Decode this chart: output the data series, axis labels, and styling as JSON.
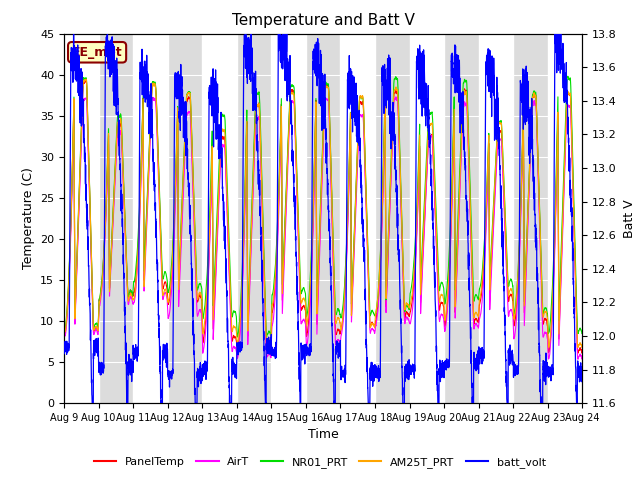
{
  "title": "Temperature and Batt V",
  "xlabel": "Time",
  "ylabel_left": "Temperature (C)",
  "ylabel_right": "Batt V",
  "ylim_left": [
    0,
    45
  ],
  "ylim_right": [
    11.6,
    13.8
  ],
  "x_tick_labels": [
    "Aug 9",
    "Aug 10",
    "Aug 11",
    "Aug 12",
    "Aug 13",
    "Aug 14",
    "Aug 15",
    "Aug 16",
    "Aug 17",
    "Aug 18",
    "Aug 19",
    "Aug 20",
    "Aug 21",
    "Aug 22",
    "Aug 23",
    "Aug 24"
  ],
  "annotation_text": "EE_met",
  "annotation_color": "#8B0000",
  "annotation_bg": "#FFFFC0",
  "bg_band_color": "#DCDCDC",
  "line_colors": {
    "PanelTemp": "#FF0000",
    "AirT": "#FF00FF",
    "NR01_PRT": "#00DD00",
    "AM25T_PRT": "#FFA500",
    "batt_volt": "#0000FF"
  },
  "n_days": 15,
  "pts_per_day": 288
}
